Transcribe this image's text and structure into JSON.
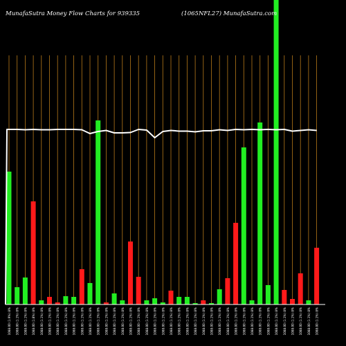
{
  "header": {
    "title_left": "MunafaSutra  Money Flow  Charts for 939335",
    "title_right": "(1065NFL27) MunafaSutra.com"
  },
  "colors": {
    "background": "#000000",
    "up": "#22ee22",
    "down": "#ff1a1a",
    "grid": "#b87a1a",
    "price_line": "#ffffff"
  },
  "chart_data": {
    "type": "bar",
    "categories": [
      "1088.00 (1.9%) 8%",
      "1088.00 (1.1%) 8%",
      "1088.00 (1.1%) 8%",
      "1088.00 (1.8%) 8%",
      "1088.00 (1.1%) 8%",
      "1088.00 (1.1%) 8%",
      "1088.00 (1.1%) 8%",
      "1088.00 (1.1%) 8%",
      "1088.00 (1.1%) 8%",
      "1088.00 (1.1%) 8%",
      "1088.00 (1.1%) 8%",
      "1088.00 (1.1%) 8%",
      "1088.00 (1.1%) 8%",
      "1088.00 (1.1%) 8%",
      "1088.00 (1.1%) 8%",
      "1088.00 (1.1%) 8%",
      "1088.00 (1.1%) 8%",
      "1088.00 (1.1%) 8%",
      "1088.00 (1.1%) 8%",
      "1088.00 (1.1%) 8%",
      "1088.00 (1.1%) 8%",
      "1088.00 (1.1%) 8%",
      "1088.00 (1.1%) 8%",
      "1088.00 (1.1%) 8%",
      "1088.00 (1.1%) 8%",
      "1088.00 (1.1%) 8%",
      "1088.00 (1.1%) 8%",
      "1088.00 (1.1%) 8%",
      "1088.00 (1.1%) 8%",
      "1088.00 (1.1%) 8%",
      "1088.00 (1.1%) 8%",
      "1088.00 (1.1%) 8%",
      "1088.00 (1.1%) 8%",
      "1088.00 (1.1%) 8%",
      "1088.00 (1.1%) 8%",
      "1088.00 (1.1%) 8%",
      "1088.00 (1.1%) 8%",
      "1088.00 (1.1%) 8%",
      "1088.00 (1.1%) 8%"
    ],
    "values": [
      192,
      25,
      39,
      149,
      6,
      11,
      3,
      12,
      11,
      51,
      31,
      266,
      3,
      16,
      6,
      91,
      40,
      6,
      9,
      3,
      20,
      11,
      11,
      2,
      6,
      2,
      22,
      38,
      118,
      227,
      6,
      263,
      28,
      450,
      21,
      8,
      45,
      6,
      82
    ],
    "flow": [
      "in",
      "in",
      "in",
      "out",
      "in",
      "out",
      "out",
      "in",
      "in",
      "out",
      "in",
      "in",
      "out",
      "in",
      "in",
      "out",
      "out",
      "in",
      "in",
      "in",
      "out",
      "in",
      "in",
      "in",
      "out",
      "in",
      "in",
      "out",
      "out",
      "in",
      "in",
      "in",
      "in",
      "in",
      "out",
      "out",
      "out",
      "in",
      "out"
    ],
    "price": [
      253,
      253,
      252.5,
      253,
      252.5,
      252.5,
      253,
      253,
      253,
      252.5,
      247,
      250,
      251.5,
      248,
      248,
      248.5,
      253,
      252,
      241,
      250,
      251.5,
      250.5,
      250.5,
      249.5,
      251,
      251,
      252.5,
      251.5,
      253,
      252.5,
      253,
      252.5,
      253,
      252.5,
      253,
      250.5,
      251.5,
      252.5,
      251.5
    ],
    "ylim": [
      0,
      440
    ],
    "grid": true
  }
}
